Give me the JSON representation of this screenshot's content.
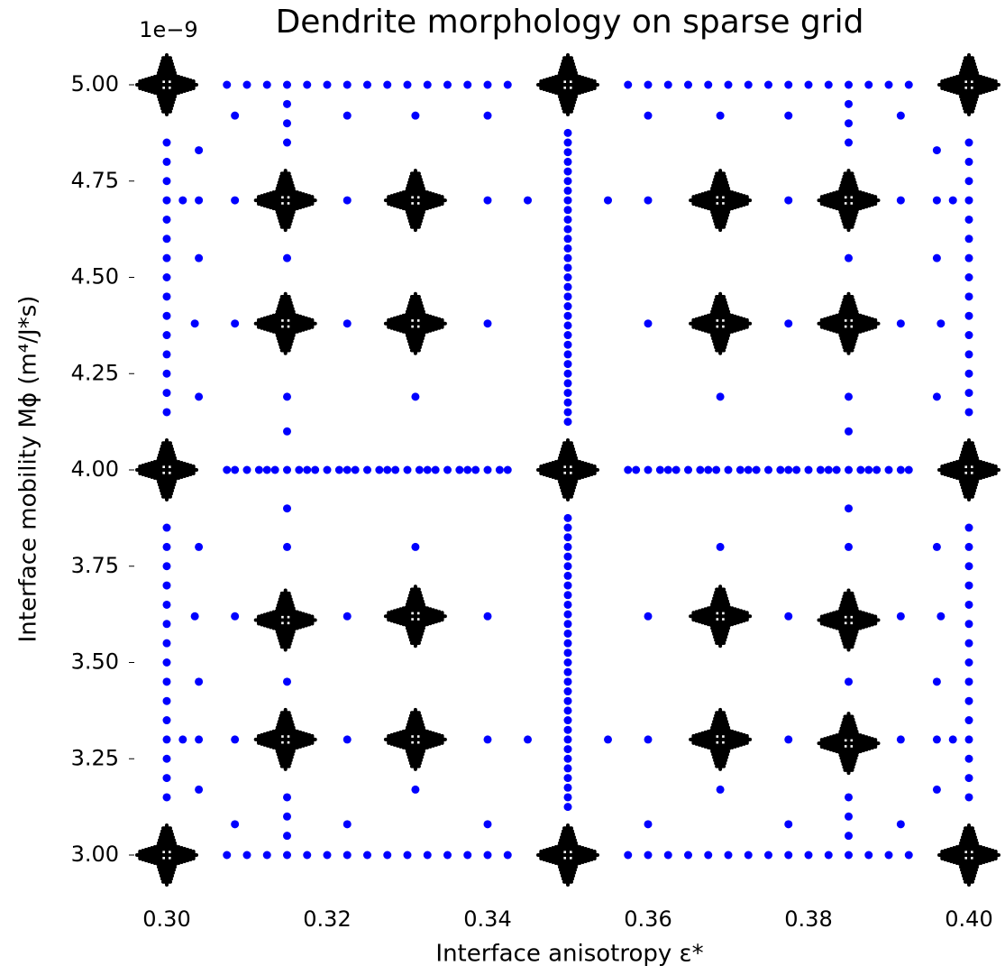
{
  "chart_data": {
    "type": "scatter",
    "title": "Dendrite morphology on sparse grid",
    "y_offset_label": "1e−9",
    "xlabel": "Interface anisotropy ε*",
    "ylabel": "Interface mobility Mϕ (m⁴/J*s)",
    "xlim": [
      0.296,
      0.404
    ],
    "ylim": [
      2.9,
      5.1
    ],
    "xticks": [
      {
        "value": 0.3,
        "label": "0.30"
      },
      {
        "value": 0.32,
        "label": "0.32"
      },
      {
        "value": 0.34,
        "label": "0.34"
      },
      {
        "value": 0.36,
        "label": "0.36"
      },
      {
        "value": 0.38,
        "label": "0.38"
      },
      {
        "value": 0.4,
        "label": "0.40"
      }
    ],
    "yticks": [
      {
        "value": 3.0,
        "label": "3.00"
      },
      {
        "value": 3.25,
        "label": "3.25"
      },
      {
        "value": 3.5,
        "label": "3.50"
      },
      {
        "value": 3.75,
        "label": "3.75"
      },
      {
        "value": 4.0,
        "label": "4.00"
      },
      {
        "value": 4.25,
        "label": "4.25"
      },
      {
        "value": 4.5,
        "label": "4.50"
      },
      {
        "value": 4.75,
        "label": "4.75"
      },
      {
        "value": 5.0,
        "label": "5.00"
      }
    ],
    "series": [
      {
        "marker": "dot",
        "color": "#0000ff",
        "x": [
          0.3075,
          0.31,
          0.3125,
          0.315,
          0.3175,
          0.32,
          0.3225,
          0.325,
          0.3275,
          0.33,
          0.3325,
          0.335,
          0.3375,
          0.34,
          0.3425,
          0.3575,
          0.36,
          0.3625,
          0.365,
          0.3675,
          0.37,
          0.3725,
          0.375,
          0.3775,
          0.38,
          0.3825,
          0.385,
          0.3875,
          0.39,
          0.3925
        ],
        "y": [
          5,
          5,
          5,
          5,
          5,
          5,
          5,
          5,
          5,
          5,
          5,
          5,
          5,
          5,
          5,
          5,
          5,
          5,
          5,
          5,
          5,
          5,
          5,
          5,
          5,
          5,
          5,
          5,
          5,
          5
        ]
      },
      {
        "marker": "dot",
        "color": "#0000ff",
        "x": [
          0.3075,
          0.3085,
          0.31,
          0.3115,
          0.3125,
          0.3135,
          0.315,
          0.3165,
          0.3175,
          0.3185,
          0.32,
          0.3215,
          0.3225,
          0.3235,
          0.325,
          0.3265,
          0.3275,
          0.3285,
          0.33,
          0.3315,
          0.3325,
          0.3335,
          0.335,
          0.3365,
          0.3375,
          0.3385,
          0.34,
          0.3415,
          0.3425,
          0.3575,
          0.3585,
          0.36,
          0.3615,
          0.3625,
          0.3635,
          0.365,
          0.3665,
          0.3675,
          0.3685,
          0.37,
          0.3715,
          0.3725,
          0.3735,
          0.375,
          0.3765,
          0.3775,
          0.3785,
          0.38,
          0.3815,
          0.3825,
          0.3835,
          0.385,
          0.3865,
          0.3875,
          0.3885,
          0.39,
          0.3915,
          0.3925
        ],
        "y": [
          4,
          4,
          4,
          4,
          4,
          4,
          4,
          4,
          4,
          4,
          4,
          4,
          4,
          4,
          4,
          4,
          4,
          4,
          4,
          4,
          4,
          4,
          4,
          4,
          4,
          4,
          4,
          4,
          4,
          4,
          4,
          4,
          4,
          4,
          4,
          4,
          4,
          4,
          4,
          4,
          4,
          4,
          4,
          4,
          4,
          4,
          4,
          4,
          4,
          4,
          4,
          4,
          4,
          4,
          4,
          4,
          4,
          4
        ]
      },
      {
        "marker": "dot",
        "color": "#0000ff",
        "x": [
          0.3075,
          0.31,
          0.3125,
          0.315,
          0.3175,
          0.32,
          0.3225,
          0.325,
          0.3275,
          0.33,
          0.3325,
          0.335,
          0.3375,
          0.34,
          0.3425,
          0.3575,
          0.36,
          0.3625,
          0.365,
          0.3675,
          0.37,
          0.3725,
          0.375,
          0.3775,
          0.38,
          0.3825,
          0.385,
          0.3875,
          0.39,
          0.3925
        ],
        "y": [
          3,
          3,
          3,
          3,
          3,
          3,
          3,
          3,
          3,
          3,
          3,
          3,
          3,
          3,
          3,
          3,
          3,
          3,
          3,
          3,
          3,
          3,
          3,
          3,
          3,
          3,
          3,
          3,
          3,
          3
        ]
      },
      {
        "marker": "dot",
        "color": "#0000ff",
        "x": [
          0.3,
          0.3,
          0.3,
          0.3,
          0.3,
          0.3,
          0.3,
          0.3,
          0.3,
          0.3,
          0.3,
          0.3,
          0.3,
          0.3,
          0.3,
          0.3,
          0.3,
          0.3,
          0.3,
          0.3,
          0.3,
          0.3,
          0.3,
          0.3,
          0.3,
          0.3,
          0.3,
          0.3,
          0.3,
          0.3
        ],
        "y": [
          3.15,
          3.2,
          3.25,
          3.3,
          3.35,
          3.4,
          3.45,
          3.5,
          3.55,
          3.6,
          3.65,
          3.7,
          3.75,
          3.8,
          3.85,
          4.15,
          4.2,
          4.25,
          4.3,
          4.35,
          4.4,
          4.45,
          4.5,
          4.55,
          4.6,
          4.65,
          4.7,
          4.75,
          4.8,
          4.85
        ]
      },
      {
        "marker": "dot",
        "color": "#0000ff",
        "x": [
          0.4,
          0.4,
          0.4,
          0.4,
          0.4,
          0.4,
          0.4,
          0.4,
          0.4,
          0.4,
          0.4,
          0.4,
          0.4,
          0.4,
          0.4,
          0.4,
          0.4,
          0.4,
          0.4,
          0.4,
          0.4,
          0.4,
          0.4,
          0.4,
          0.4,
          0.4,
          0.4,
          0.4,
          0.4,
          0.4
        ],
        "y": [
          3.15,
          3.2,
          3.25,
          3.3,
          3.35,
          3.4,
          3.45,
          3.5,
          3.55,
          3.6,
          3.65,
          3.7,
          3.75,
          3.8,
          3.85,
          4.15,
          4.2,
          4.25,
          4.3,
          4.35,
          4.4,
          4.45,
          4.5,
          4.55,
          4.6,
          4.65,
          4.7,
          4.75,
          4.8,
          4.85
        ]
      },
      {
        "marker": "dot",
        "color": "#0000ff",
        "x": [
          0.35,
          0.35,
          0.35,
          0.35,
          0.35,
          0.35,
          0.35,
          0.35,
          0.35,
          0.35,
          0.35,
          0.35,
          0.35,
          0.35,
          0.35,
          0.35,
          0.35,
          0.35,
          0.35,
          0.35,
          0.35,
          0.35,
          0.35,
          0.35,
          0.35,
          0.35,
          0.35,
          0.35,
          0.35,
          0.35,
          0.35,
          0.35,
          0.35,
          0.35,
          0.35,
          0.35,
          0.35,
          0.35,
          0.35,
          0.35,
          0.35,
          0.35,
          0.35,
          0.35,
          0.35,
          0.35,
          0.35,
          0.35,
          0.35,
          0.35,
          0.35,
          0.35,
          0.35,
          0.35,
          0.35,
          0.35,
          0.35,
          0.35,
          0.35,
          0.35,
          0.35,
          0.35
        ],
        "y": [
          3.125,
          3.15,
          3.175,
          3.2,
          3.225,
          3.25,
          3.275,
          3.3,
          3.325,
          3.35,
          3.375,
          3.4,
          3.425,
          3.45,
          3.475,
          3.5,
          3.525,
          3.55,
          3.575,
          3.6,
          3.625,
          3.65,
          3.675,
          3.7,
          3.725,
          3.75,
          3.775,
          3.8,
          3.825,
          3.85,
          3.875,
          4.125,
          4.15,
          4.175,
          4.2,
          4.225,
          4.25,
          4.275,
          4.3,
          4.325,
          4.35,
          4.375,
          4.4,
          4.425,
          4.45,
          4.475,
          4.5,
          4.525,
          4.55,
          4.575,
          4.6,
          4.625,
          4.65,
          4.675,
          4.7,
          4.725,
          4.75,
          4.775,
          4.8,
          4.825,
          4.85,
          4.875
        ]
      },
      {
        "marker": "dot",
        "color": "#0000ff",
        "x": [
          0.3085,
          0.3225,
          0.331,
          0.34,
          0.36,
          0.369,
          0.3775,
          0.3915,
          0.315,
          0.315,
          0.315,
          0.385,
          0.385,
          0.385,
          0.304,
          0.396,
          0.302,
          0.304,
          0.3085,
          0.3225,
          0.34,
          0.345,
          0.355,
          0.36,
          0.3775,
          0.3915,
          0.396,
          0.398,
          0.304,
          0.315,
          0.385,
          0.396,
          0.3035,
          0.3085,
          0.3225,
          0.34,
          0.36,
          0.3775,
          0.3915,
          0.3965,
          0.304,
          0.315,
          0.331,
          0.369,
          0.385,
          0.396,
          0.315,
          0.385
        ],
        "y": [
          4.92,
          4.92,
          4.92,
          4.92,
          4.92,
          4.92,
          4.92,
          4.92,
          4.95,
          4.9,
          4.85,
          4.95,
          4.9,
          4.85,
          4.83,
          4.83,
          4.7,
          4.7,
          4.7,
          4.7,
          4.7,
          4.7,
          4.7,
          4.7,
          4.7,
          4.7,
          4.7,
          4.7,
          4.55,
          4.55,
          4.55,
          4.55,
          4.38,
          4.38,
          4.38,
          4.38,
          4.38,
          4.38,
          4.38,
          4.38,
          4.19,
          4.19,
          4.19,
          4.19,
          4.19,
          4.19,
          4.1,
          4.1
        ]
      },
      {
        "marker": "dot",
        "color": "#0000ff",
        "x": [
          0.315,
          0.385,
          0.304,
          0.315,
          0.331,
          0.369,
          0.385,
          0.396,
          0.3035,
          0.3085,
          0.3225,
          0.34,
          0.36,
          0.3775,
          0.3915,
          0.3965,
          0.304,
          0.315,
          0.385,
          0.396,
          0.302,
          0.304,
          0.3085,
          0.3225,
          0.34,
          0.345,
          0.355,
          0.36,
          0.3775,
          0.3915,
          0.396,
          0.398,
          0.304,
          0.331,
          0.369,
          0.396,
          0.315,
          0.315,
          0.315,
          0.385,
          0.385,
          0.385,
          0.3085,
          0.3225,
          0.34,
          0.36,
          0.3775,
          0.3915
        ],
        "y": [
          3.9,
          3.9,
          3.8,
          3.8,
          3.8,
          3.8,
          3.8,
          3.8,
          3.62,
          3.62,
          3.62,
          3.62,
          3.62,
          3.62,
          3.62,
          3.62,
          3.45,
          3.45,
          3.45,
          3.45,
          3.3,
          3.3,
          3.3,
          3.3,
          3.3,
          3.3,
          3.3,
          3.3,
          3.3,
          3.3,
          3.3,
          3.3,
          3.17,
          3.17,
          3.17,
          3.17,
          3.15,
          3.1,
          3.05,
          3.15,
          3.1,
          3.05,
          3.08,
          3.08,
          3.08,
          3.08,
          3.08,
          3.08
        ]
      },
      {
        "marker": "dendrite",
        "color": "#000000",
        "x": [
          0.3,
          0.35,
          0.4,
          0.3148,
          0.331,
          0.369,
          0.385,
          0.3148,
          0.331,
          0.369,
          0.385,
          0.3,
          0.35,
          0.4,
          0.3148,
          0.331,
          0.369,
          0.385,
          0.3148,
          0.331,
          0.369,
          0.385,
          0.3,
          0.35,
          0.4
        ],
        "y": [
          5,
          5,
          5,
          4.7,
          4.7,
          4.7,
          4.7,
          4.38,
          4.38,
          4.38,
          4.38,
          4,
          4,
          4,
          3.61,
          3.62,
          3.62,
          3.61,
          3.3,
          3.3,
          3.3,
          3.29,
          3,
          3,
          3
        ]
      }
    ]
  }
}
